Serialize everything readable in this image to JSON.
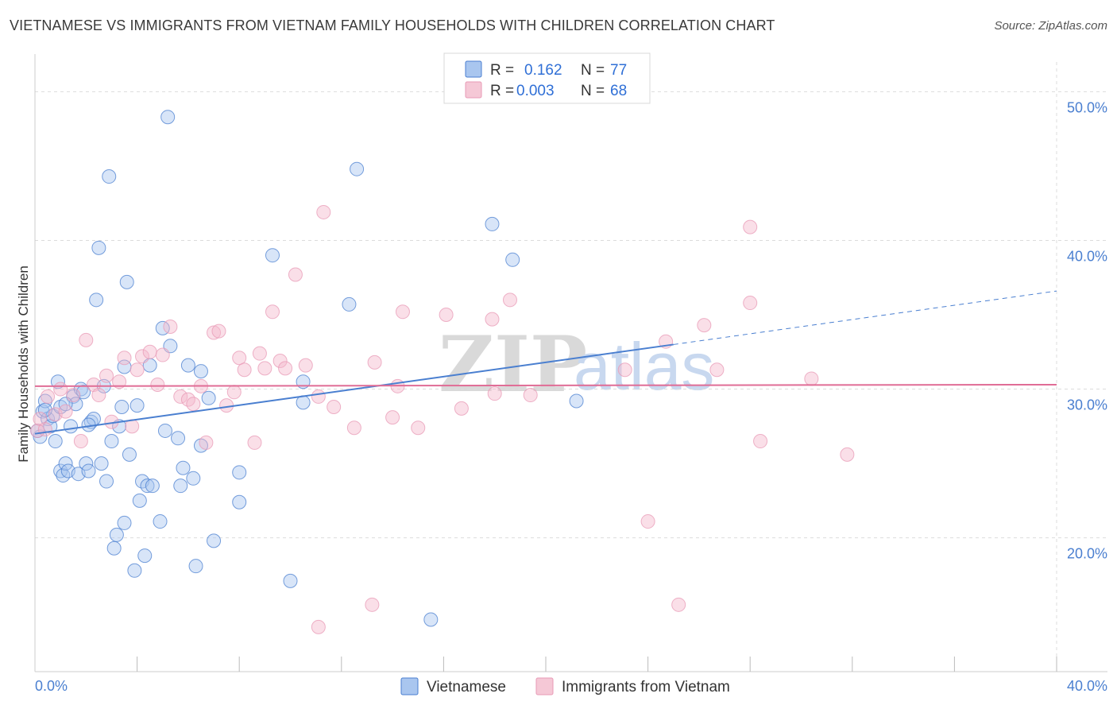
{
  "title": "VIETNAMESE VS IMMIGRANTS FROM VIETNAM FAMILY HOUSEHOLDS WITH CHILDREN CORRELATION CHART",
  "source": "Source: ZipAtlas.com",
  "colors": {
    "blue": "#4a7fd0",
    "blue_fill": "#a9c6ef",
    "pink": "#e06d96",
    "pink_fill": "#f5b8cb",
    "grid": "#dcdcdc"
  },
  "legend": {
    "r_label": "R =",
    "n_label": "N =",
    "series": [
      {
        "r": "0.162",
        "n": "77"
      },
      {
        "r": "0.003",
        "n": "68"
      }
    ]
  },
  "watermark": {
    "zip": "ZIP",
    "atlas": "atlas"
  },
  "chart_data": {
    "type": "scatter",
    "title": "VIETNAMESE VS IMMIGRANTS FROM VIETNAM FAMILY HOUSEHOLDS WITH CHILDREN CORRELATION CHART",
    "xlabel": "",
    "ylabel": "Family Households with Children",
    "xlim": [
      0,
      40
    ],
    "ylim": [
      11,
      52
    ],
    "x_tick_labels": [
      "0.0%",
      "40.0%"
    ],
    "y_ticks": [
      20,
      30,
      40,
      50
    ],
    "y_tick_labels": [
      "20.0%",
      "30.0%",
      "40.0%",
      "50.0%"
    ],
    "legend_position": "top-center",
    "series": [
      {
        "name": "Vietnamese",
        "r": 0.162,
        "n": 77,
        "trend": {
          "x0": 0,
          "y0": 27.0,
          "x1": 25.0,
          "y1": 33.0,
          "x_dash_end": 40.0,
          "y_dash_end": 36.6
        },
        "points": [
          [
            0.2,
            26.8
          ],
          [
            0.3,
            28.5
          ],
          [
            0.4,
            29.2
          ],
          [
            0.5,
            28.0
          ],
          [
            0.6,
            27.5
          ],
          [
            0.7,
            28.2
          ],
          [
            0.8,
            26.5
          ],
          [
            0.9,
            30.5
          ],
          [
            1.0,
            28.8
          ],
          [
            1.0,
            24.5
          ],
          [
            1.1,
            24.2
          ],
          [
            1.2,
            25.0
          ],
          [
            1.3,
            24.5
          ],
          [
            1.4,
            27.5
          ],
          [
            1.5,
            29.5
          ],
          [
            1.6,
            29.0
          ],
          [
            1.7,
            24.3
          ],
          [
            1.8,
            30.0
          ],
          [
            1.9,
            29.8
          ],
          [
            2.0,
            25.0
          ],
          [
            2.1,
            24.5
          ],
          [
            2.2,
            27.8
          ],
          [
            2.3,
            28.0
          ],
          [
            2.4,
            36.0
          ],
          [
            2.5,
            39.5
          ],
          [
            2.6,
            25.0
          ],
          [
            2.7,
            30.2
          ],
          [
            2.8,
            23.8
          ],
          [
            2.9,
            44.3
          ],
          [
            3.0,
            26.5
          ],
          [
            3.1,
            19.3
          ],
          [
            3.2,
            20.2
          ],
          [
            3.3,
            27.5
          ],
          [
            3.4,
            28.8
          ],
          [
            3.5,
            31.5
          ],
          [
            3.5,
            21.0
          ],
          [
            3.6,
            37.2
          ],
          [
            3.7,
            25.6
          ],
          [
            3.9,
            17.8
          ],
          [
            4.0,
            28.9
          ],
          [
            4.1,
            22.5
          ],
          [
            4.2,
            23.8
          ],
          [
            4.3,
            18.8
          ],
          [
            4.4,
            23.5
          ],
          [
            4.5,
            31.6
          ],
          [
            4.6,
            23.5
          ],
          [
            4.9,
            21.1
          ],
          [
            5.0,
            34.1
          ],
          [
            5.1,
            27.2
          ],
          [
            5.2,
            48.3
          ],
          [
            5.3,
            32.9
          ],
          [
            5.6,
            26.7
          ],
          [
            5.7,
            23.5
          ],
          [
            5.8,
            24.7
          ],
          [
            6.0,
            31.6
          ],
          [
            6.2,
            24.0
          ],
          [
            6.3,
            18.1
          ],
          [
            6.5,
            31.2
          ],
          [
            6.5,
            26.2
          ],
          [
            6.8,
            29.4
          ],
          [
            7.0,
            19.8
          ],
          [
            8.0,
            24.4
          ],
          [
            8.0,
            22.4
          ],
          [
            9.3,
            39.0
          ],
          [
            10.0,
            17.1
          ],
          [
            10.5,
            30.5
          ],
          [
            10.5,
            29.1
          ],
          [
            12.3,
            35.7
          ],
          [
            12.6,
            44.8
          ],
          [
            15.5,
            14.5
          ],
          [
            17.9,
            41.1
          ],
          [
            18.7,
            38.7
          ],
          [
            21.2,
            29.2
          ],
          [
            0.1,
            27.2
          ],
          [
            0.4,
            28.6
          ],
          [
            1.2,
            29.0
          ],
          [
            2.1,
            27.6
          ]
        ]
      },
      {
        "name": "Immigrants from Vietnam",
        "r": 0.003,
        "n": 68,
        "trend": {
          "x0": 0,
          "y0": 30.2,
          "x1": 40,
          "y1": 30.3
        },
        "points": [
          [
            0.1,
            27.2
          ],
          [
            0.2,
            28.0
          ],
          [
            0.4,
            27.3
          ],
          [
            0.5,
            29.5
          ],
          [
            0.8,
            28.3
          ],
          [
            1.0,
            30.0
          ],
          [
            1.2,
            28.5
          ],
          [
            1.5,
            29.6
          ],
          [
            1.8,
            26.5
          ],
          [
            2.0,
            33.3
          ],
          [
            2.3,
            30.3
          ],
          [
            2.5,
            29.6
          ],
          [
            2.8,
            30.9
          ],
          [
            3.0,
            27.8
          ],
          [
            3.3,
            30.5
          ],
          [
            3.5,
            32.1
          ],
          [
            3.8,
            27.5
          ],
          [
            4.0,
            31.3
          ],
          [
            4.2,
            32.2
          ],
          [
            4.5,
            32.5
          ],
          [
            4.8,
            30.3
          ],
          [
            5.0,
            32.3
          ],
          [
            5.3,
            34.2
          ],
          [
            5.7,
            29.5
          ],
          [
            6.0,
            29.3
          ],
          [
            6.2,
            29.0
          ],
          [
            6.5,
            30.2
          ],
          [
            6.7,
            26.4
          ],
          [
            7.0,
            33.8
          ],
          [
            7.2,
            33.9
          ],
          [
            7.5,
            28.9
          ],
          [
            7.8,
            29.8
          ],
          [
            8.0,
            32.1
          ],
          [
            8.2,
            31.3
          ],
          [
            8.6,
            26.4
          ],
          [
            8.8,
            32.4
          ],
          [
            9.0,
            31.4
          ],
          [
            9.3,
            35.2
          ],
          [
            9.6,
            31.9
          ],
          [
            9.8,
            31.4
          ],
          [
            10.2,
            37.7
          ],
          [
            10.6,
            31.6
          ],
          [
            11.1,
            29.5
          ],
          [
            11.3,
            41.9
          ],
          [
            11.1,
            14.0
          ],
          [
            11.7,
            28.8
          ],
          [
            12.5,
            27.4
          ],
          [
            13.2,
            15.5
          ],
          [
            13.3,
            31.8
          ],
          [
            14.0,
            28.1
          ],
          [
            14.2,
            30.2
          ],
          [
            14.4,
            35.2
          ],
          [
            15.0,
            27.4
          ],
          [
            16.1,
            35.0
          ],
          [
            16.7,
            28.7
          ],
          [
            17.9,
            34.7
          ],
          [
            18.0,
            29.7
          ],
          [
            18.6,
            36.0
          ],
          [
            19.4,
            29.6
          ],
          [
            23.1,
            31.3
          ],
          [
            24.0,
            21.1
          ],
          [
            24.7,
            33.2
          ],
          [
            25.2,
            15.5
          ],
          [
            26.2,
            34.3
          ],
          [
            26.7,
            31.3
          ],
          [
            28.0,
            40.9
          ],
          [
            28.4,
            26.5
          ],
          [
            30.4,
            30.7
          ],
          [
            31.8,
            25.6
          ],
          [
            28.0,
            35.8
          ]
        ]
      }
    ]
  },
  "bottom_legend": [
    {
      "label": "Vietnamese"
    },
    {
      "label": "Immigrants from Vietnam"
    }
  ]
}
